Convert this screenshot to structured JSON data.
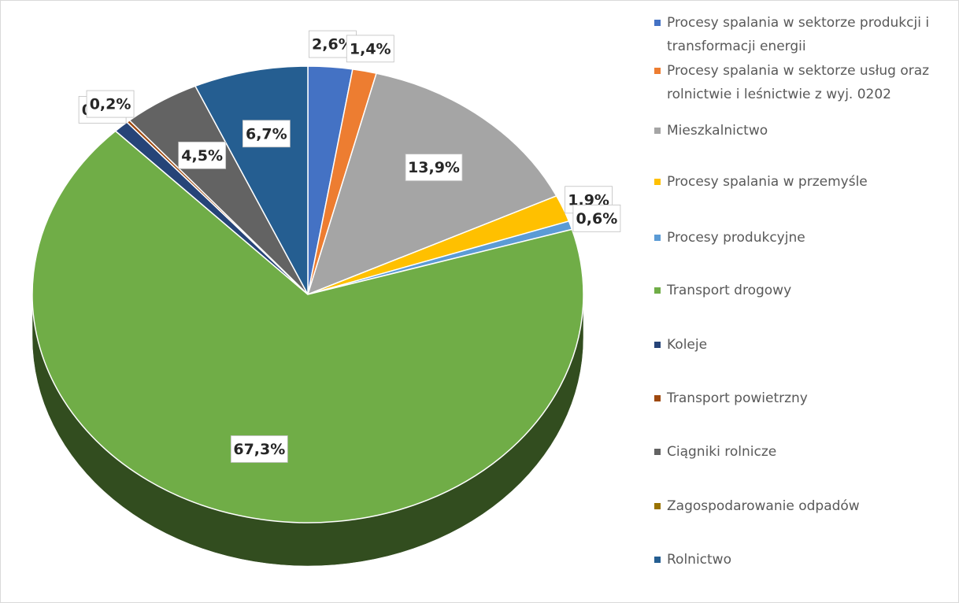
{
  "chart_data": {
    "type": "pie",
    "categories": [
      "Procesy spalania w sektorze produkcji i transformacji energii",
      "Procesy spalania w sektorze usług oraz rolnictwie i leśnictwie z wyj. 0202",
      "Mieszkalnictwo",
      "Procesy spalania w przemyśle",
      "Procesy produkcyjne",
      "Transport drogowy",
      "Koleje",
      "Transport powietrzny",
      "Ciągniki rolnicze",
      "Zagospodarowanie odpadów",
      "Rolnictwo"
    ],
    "values": [
      2.6,
      1.4,
      13.9,
      1.9,
      0.6,
      67.3,
      0.9,
      0.2,
      4.5,
      0,
      6.7
    ],
    "value_labels": [
      "2,6%",
      "1,4%",
      "13,9%",
      "1,9%",
      "0,6%",
      "67,3%",
      "0,9%",
      "0,2%",
      "4,5%",
      null,
      "6,7%"
    ],
    "colors": [
      "#4472c4",
      "#ed7d31",
      "#a5a5a5",
      "#ffc000",
      "#5b9bd5",
      "#70ad47",
      "#264478",
      "#9e480e",
      "#636363",
      "#997300",
      "#255e91"
    ],
    "legend": "right"
  }
}
